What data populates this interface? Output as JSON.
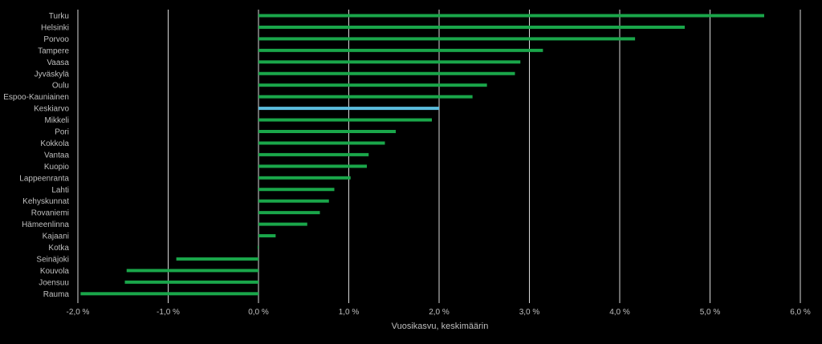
{
  "chart_data": {
    "type": "bar",
    "orientation": "horizontal",
    "title": "",
    "xlabel": "Vuosikasvu, keskimäärin",
    "ylabel": "",
    "xlim": [
      -2.0,
      6.0
    ],
    "x_ticks": [
      -2.0,
      -1.0,
      0.0,
      1.0,
      2.0,
      3.0,
      4.0,
      5.0,
      6.0
    ],
    "x_tick_labels": [
      "-2,0 %",
      "-1,0 %",
      "0,0 %",
      "1,0 %",
      "2,0 %",
      "3,0 %",
      "4,0 %",
      "5,0 %",
      "6,0 %"
    ],
    "grid": "vertical",
    "legend": "none",
    "categories": [
      "Turku",
      "Helsinki",
      "Porvoo",
      "Tampere",
      "Vaasa",
      "Jyväskylä",
      "Oulu",
      "Espoo-Kauniainen",
      "Keskiarvo",
      "Mikkeli",
      "Pori",
      "Kokkola",
      "Vantaa",
      "Kuopio",
      "Lappeenranta",
      "Lahti",
      "Kehyskunnat",
      "Rovaniemi",
      "Hämeenlinna",
      "Kajaani",
      "Kotka",
      "Seinäjoki",
      "Kouvola",
      "Joensuu",
      "Rauma"
    ],
    "values": [
      5.6,
      4.72,
      4.17,
      3.15,
      2.9,
      2.84,
      2.53,
      2.37,
      2.0,
      1.92,
      1.52,
      1.4,
      1.22,
      1.2,
      1.02,
      0.84,
      0.78,
      0.68,
      0.54,
      0.19,
      -0.01,
      -0.91,
      -1.46,
      -1.48,
      -1.97
    ],
    "highlight_category": "Keskiarvo",
    "colors": {
      "bar": "#1aa64a",
      "highlight": "#5bbcdd",
      "grid": "#d9d9d9",
      "text": "#bfbfbf",
      "background": "#000000"
    }
  }
}
